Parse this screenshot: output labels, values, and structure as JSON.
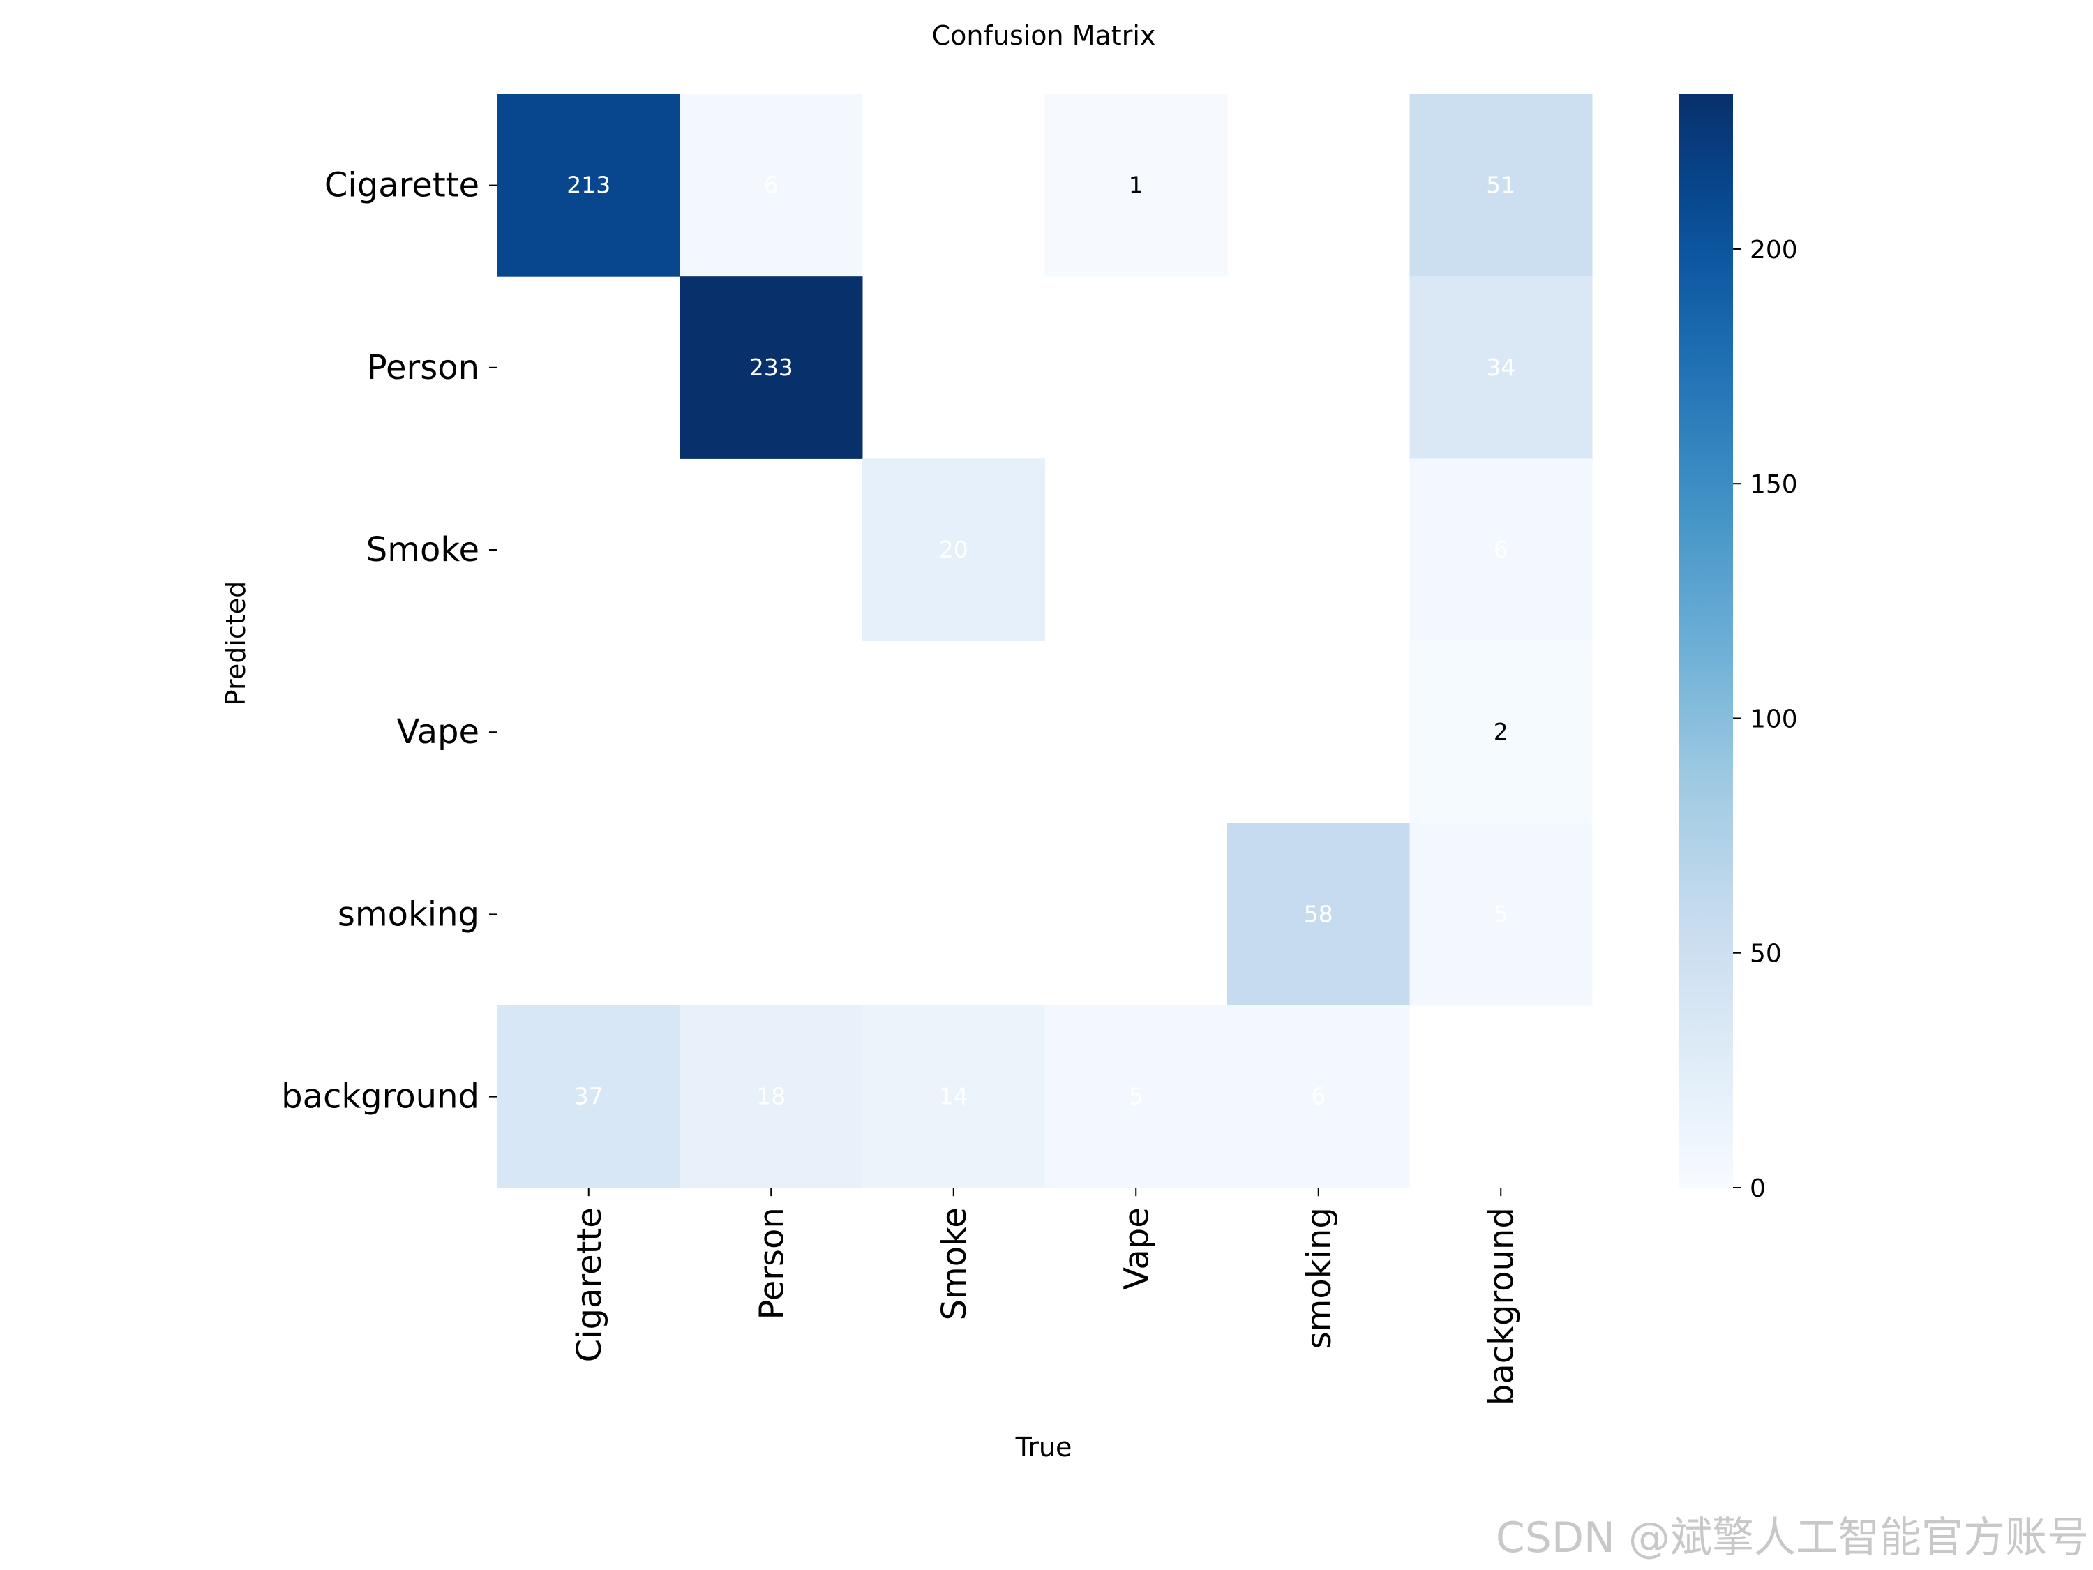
{
  "chart_data": {
    "type": "heatmap",
    "title": "Confusion Matrix",
    "xlabel": "True",
    "ylabel": "Predicted",
    "x_categories": [
      "Cigarette",
      "Person",
      "Smoke",
      "Vape",
      "smoking",
      "background"
    ],
    "y_categories": [
      "Cigarette",
      "Person",
      "Smoke",
      "Vape",
      "smoking",
      "background"
    ],
    "values": [
      [
        213,
        6,
        null,
        1,
        null,
        51
      ],
      [
        null,
        233,
        null,
        null,
        null,
        34
      ],
      [
        null,
        null,
        20,
        null,
        null,
        6
      ],
      [
        null,
        null,
        null,
        null,
        null,
        2
      ],
      [
        null,
        null,
        null,
        null,
        58,
        5
      ],
      [
        37,
        18,
        14,
        5,
        6,
        null
      ]
    ],
    "colormap": "Blues",
    "colorbar": {
      "min": 0,
      "max": 233,
      "ticks": [
        0,
        50,
        100,
        150,
        200
      ]
    },
    "colors": {
      "low": "#f7fbff",
      "high": "#08306b"
    },
    "watermark": "CSDN @斌擎人工智能官方账号"
  }
}
